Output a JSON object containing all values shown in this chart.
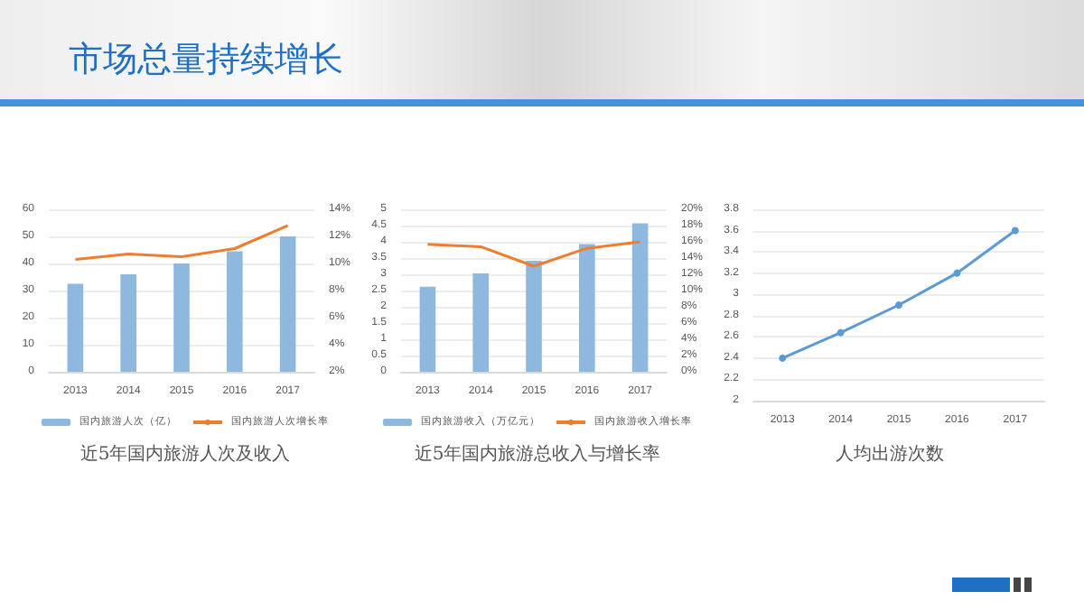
{
  "chart_data": [
    {
      "type": "bar",
      "title": "近5年国内旅游人次及收入",
      "annotations": [
        "市场总量持续增长"
      ],
      "categories": [
        "2013",
        "2014",
        "2015",
        "2016",
        "2017"
      ],
      "series": [
        {
          "name": "国内旅游人次（亿）",
          "color": "#8fb8de",
          "values": [
            32.5,
            36,
            40,
            44.5,
            50
          ]
        },
        {
          "name": "国内旅游人次增长率",
          "type": "line",
          "axis": "y2",
          "color": "#ed7d31",
          "values": [
            10.3,
            10.7,
            10.5,
            11.1,
            12.8
          ]
        }
      ],
      "ylim": [
        0,
        60
      ],
      "yticks": [
        0,
        10,
        20,
        30,
        40,
        50,
        60
      ],
      "y2lim": [
        2,
        14
      ],
      "y2ticks": [
        {
          "value": 2,
          "label": "2%"
        },
        {
          "value": 4,
          "label": "4%"
        },
        {
          "value": 6,
          "label": "6%"
        },
        {
          "value": 8,
          "label": "8%"
        },
        {
          "value": 10,
          "label": "10%"
        },
        {
          "value": 12,
          "label": "12%"
        },
        {
          "value": 14,
          "label": "14%"
        }
      ],
      "grid": "y",
      "legend": "bottom",
      "marker": "none"
    },
    {
      "type": "bar",
      "title": "近5年国内旅游总收入与增长率",
      "categories": [
        "2013",
        "2014",
        "2015",
        "2016",
        "2017"
      ],
      "series": [
        {
          "name": "国内旅游收入（万亿元）",
          "color": "#8fb8de",
          "values": [
            2.62,
            3.03,
            3.42,
            3.93,
            4.57
          ]
        },
        {
          "name": "国内旅游收入增长率",
          "type": "line",
          "axis": "y2",
          "color": "#ed7d31",
          "values": [
            15.7,
            15.4,
            13.0,
            15.2,
            16.0
          ]
        }
      ],
      "ylim": [
        0,
        5
      ],
      "yticks": [
        0,
        0.5,
        1,
        1.5,
        2,
        2.5,
        3,
        3.5,
        4,
        4.5,
        5
      ],
      "y2lim": [
        0,
        20
      ],
      "y2ticks": [
        {
          "value": 0,
          "label": "0%"
        },
        {
          "value": 2,
          "label": "2%"
        },
        {
          "value": 4,
          "label": "4%"
        },
        {
          "value": 6,
          "label": "6%"
        },
        {
          "value": 8,
          "label": "8%"
        },
        {
          "value": 10,
          "label": "10%"
        },
        {
          "value": 12,
          "label": "12%"
        },
        {
          "value": 14,
          "label": "14%"
        },
        {
          "value": 16,
          "label": "16%"
        },
        {
          "value": 18,
          "label": "18%"
        },
        {
          "value": 20,
          "label": "20%"
        }
      ],
      "grid": "y",
      "legend": "bottom",
      "marker": "none"
    },
    {
      "type": "line",
      "title": "人均出游次数",
      "categories": [
        "2013",
        "2014",
        "2015",
        "2016",
        "2017"
      ],
      "series": [
        {
          "color": "#5b9bd5",
          "values": [
            2.4,
            2.64,
            2.9,
            3.2,
            3.6
          ]
        }
      ],
      "ylim": [
        2,
        3.8
      ],
      "yticks": [
        2,
        2.2,
        2.4,
        2.6,
        2.8,
        3,
        3.2,
        3.4,
        3.6,
        3.8
      ],
      "grid": "y",
      "marker": "circle"
    }
  ]
}
